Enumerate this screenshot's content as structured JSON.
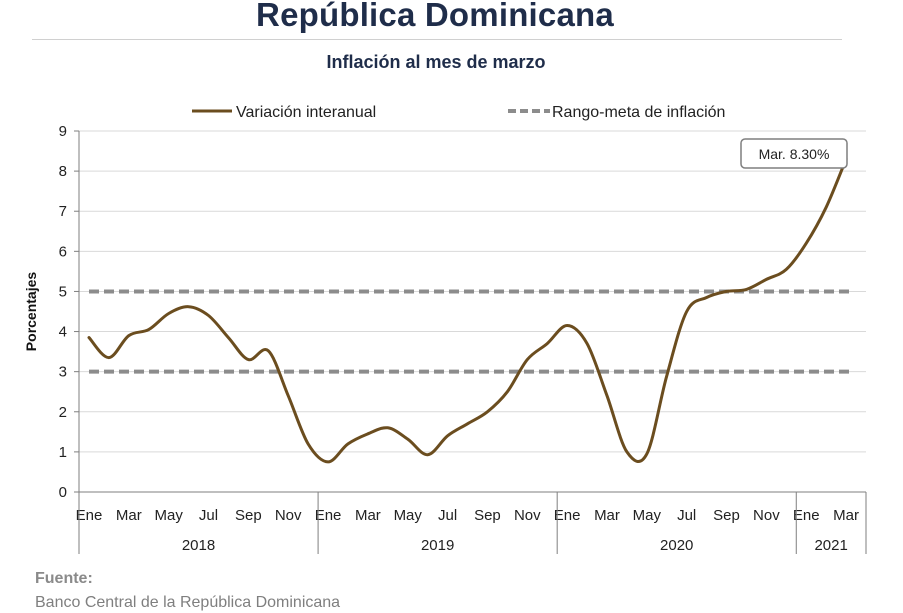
{
  "header": {
    "title": "República Dominicana",
    "subtitle": "Inflación al mes de marzo"
  },
  "source": {
    "label": "Fuente:",
    "text": "Banco Central de la República Dominicana"
  },
  "colors": {
    "series": "#6b4d1f",
    "target_band": "#8c8c8c",
    "title": "#1f2d4a",
    "grid": "#d9d9d9"
  },
  "chart_data": {
    "type": "line",
    "title": "Inflación al mes de marzo",
    "ylabel": "Porcentajes",
    "ylim": [
      0,
      9
    ],
    "yticks": [
      "0",
      "1",
      "2",
      "3",
      "4",
      "5",
      "6",
      "7",
      "8",
      "9"
    ],
    "x_month_labels": [
      "Ene",
      "Mar",
      "May",
      "Jul",
      "Sep",
      "Nov",
      "Ene",
      "Mar",
      "May",
      "Jul",
      "Sep",
      "Nov",
      "Ene",
      "Mar",
      "May",
      "Jul",
      "Sep",
      "Nov",
      "Ene",
      "Mar"
    ],
    "x_year_labels": [
      "2018",
      "2019",
      "2020",
      "2021"
    ],
    "grid": true,
    "legend_position": "top",
    "series": [
      {
        "name": "Variación interanual",
        "style": "solid",
        "x": [
          "2018-01",
          "2018-02",
          "2018-03",
          "2018-04",
          "2018-05",
          "2018-06",
          "2018-07",
          "2018-08",
          "2018-09",
          "2018-10",
          "2018-11",
          "2018-12",
          "2019-01",
          "2019-02",
          "2019-03",
          "2019-04",
          "2019-05",
          "2019-06",
          "2019-07",
          "2019-08",
          "2019-09",
          "2019-10",
          "2019-11",
          "2019-12",
          "2020-01",
          "2020-02",
          "2020-03",
          "2020-04",
          "2020-05",
          "2020-06",
          "2020-07",
          "2020-08",
          "2020-09",
          "2020-10",
          "2020-11",
          "2020-12",
          "2021-01",
          "2021-02",
          "2021-03"
        ],
        "values": [
          3.85,
          3.35,
          3.9,
          4.05,
          4.45,
          4.62,
          4.4,
          3.85,
          3.3,
          3.52,
          2.4,
          1.2,
          0.75,
          1.2,
          1.45,
          1.6,
          1.32,
          0.93,
          1.4,
          1.7,
          2.0,
          2.5,
          3.3,
          3.7,
          4.15,
          3.7,
          2.4,
          1.0,
          0.95,
          2.9,
          4.5,
          4.85,
          5.0,
          5.05,
          5.3,
          5.55,
          6.2,
          7.1,
          8.3
        ]
      },
      {
        "name": "Rango-meta de inflación",
        "style": "dashed",
        "bounds": [
          3,
          5
        ]
      }
    ],
    "annotations": [
      {
        "text": "Mar. 8.30%",
        "x": "2021-03",
        "y": 8.3
      }
    ]
  }
}
